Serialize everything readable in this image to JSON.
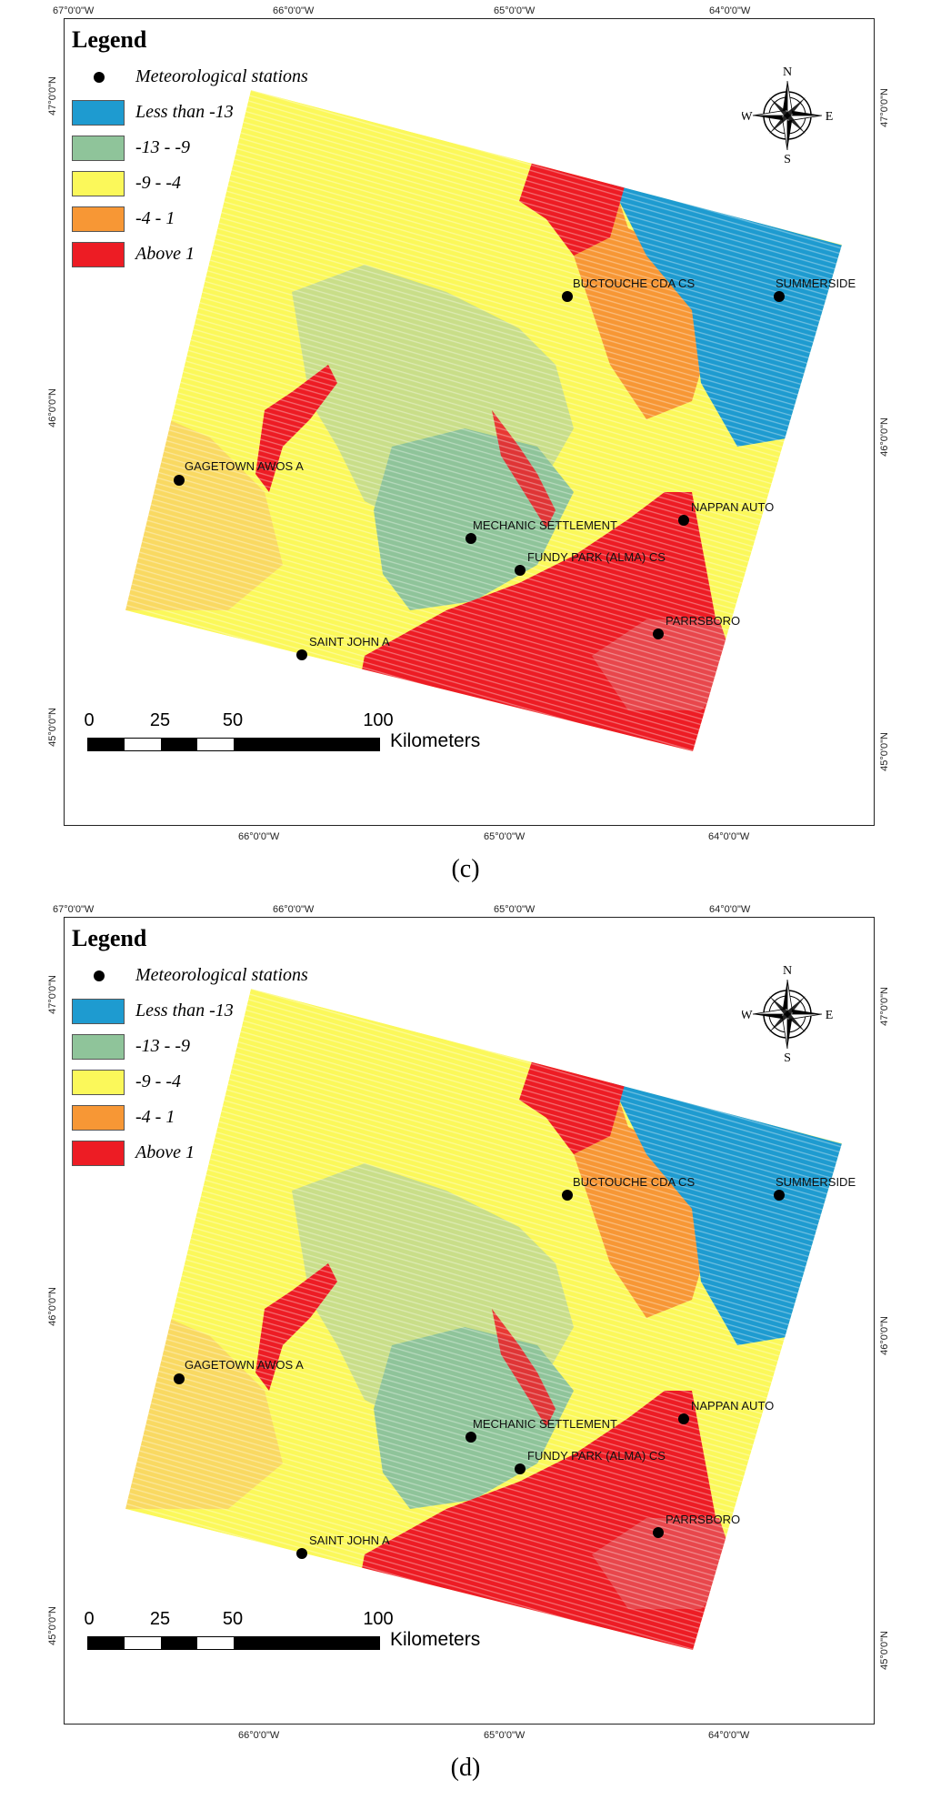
{
  "panels": [
    {
      "id": "c",
      "caption": "(c)",
      "legend": {
        "title": "Legend",
        "stations_label": "Meteorological stations",
        "classes": [
          {
            "label": "Less than -13",
            "color": "#1e9bd0"
          },
          {
            "label": "-13 - -9",
            "color": "#8fc49a"
          },
          {
            "label": "-9 - -4",
            "color": "#fbf85a"
          },
          {
            "label": "-4 - 1",
            "color": "#f79735"
          },
          {
            "label": "Above 1",
            "color": "#ed1c24"
          }
        ]
      },
      "top_ticks": [
        "67°0'0\"W",
        "66°0'0\"W",
        "65°0'0\"W",
        "64°0'0\"W"
      ],
      "bottom_ticks": [
        "66°0'0\"W",
        "65°0'0\"W",
        "64°0'0\"W"
      ],
      "left_ticks": [
        "47°0'0\"N",
        "46°0'0\"N",
        "45°0'0\"N"
      ],
      "right_ticks": [
        "47°0'0\"N",
        "46°0'0\"N",
        "45°0'0\"N"
      ],
      "stations": [
        {
          "name": "BUCTOUCHE CDA CS"
        },
        {
          "name": "SUMMERSIDE"
        },
        {
          "name": "GAGETOWN AWOS A"
        },
        {
          "name": "NAPPAN AUTO"
        },
        {
          "name": "MECHANIC SETTLEMENT"
        },
        {
          "name": "FUNDY PARK (ALMA) CS"
        },
        {
          "name": "PARRSBORO"
        },
        {
          "name": "SAINT JOHN A"
        }
      ],
      "scale": {
        "labels": [
          "0",
          "25",
          "50",
          "100"
        ],
        "unit": "Kilometers"
      },
      "compass": {
        "n": "N",
        "s": "S",
        "e": "E",
        "w": "W"
      }
    },
    {
      "id": "d",
      "caption": "(d)",
      "legend": {
        "title": "Legend",
        "stations_label": "Meteorological stations",
        "classes": [
          {
            "label": "Less than -13",
            "color": "#1e9bd0"
          },
          {
            "label": "-13 - -9",
            "color": "#8fc49a"
          },
          {
            "label": "-9 - -4",
            "color": "#fbf85a"
          },
          {
            "label": "-4 - 1",
            "color": "#f79735"
          },
          {
            "label": "Above 1",
            "color": "#ed1c24"
          }
        ]
      },
      "top_ticks": [
        "67°0'0\"W",
        "66°0'0\"W",
        "65°0'0\"W",
        "64°0'0\"W"
      ],
      "bottom_ticks": [
        "66°0'0\"W",
        "65°0'0\"W",
        "64°0'0\"W"
      ],
      "left_ticks": [
        "47°0'0\"N",
        "46°0'0\"N",
        "45°0'0\"N"
      ],
      "right_ticks": [
        "47°0'0\"N",
        "46°0'0\"N",
        "45°0'0\"N"
      ],
      "stations": [
        {
          "name": "BUCTOUCHE CDA CS"
        },
        {
          "name": "SUMMERSIDE"
        },
        {
          "name": "GAGETOWN AWOS A"
        },
        {
          "name": "NAPPAN AUTO"
        },
        {
          "name": "MECHANIC SETTLEMENT"
        },
        {
          "name": "FUNDY PARK (ALMA) CS"
        },
        {
          "name": "PARRSBORO"
        },
        {
          "name": "SAINT JOHN A"
        }
      ],
      "scale": {
        "labels": [
          "0",
          "25",
          "50",
          "100"
        ],
        "unit": "Kilometers"
      },
      "compass": {
        "n": "N",
        "s": "S",
        "e": "E",
        "w": "W"
      }
    }
  ]
}
